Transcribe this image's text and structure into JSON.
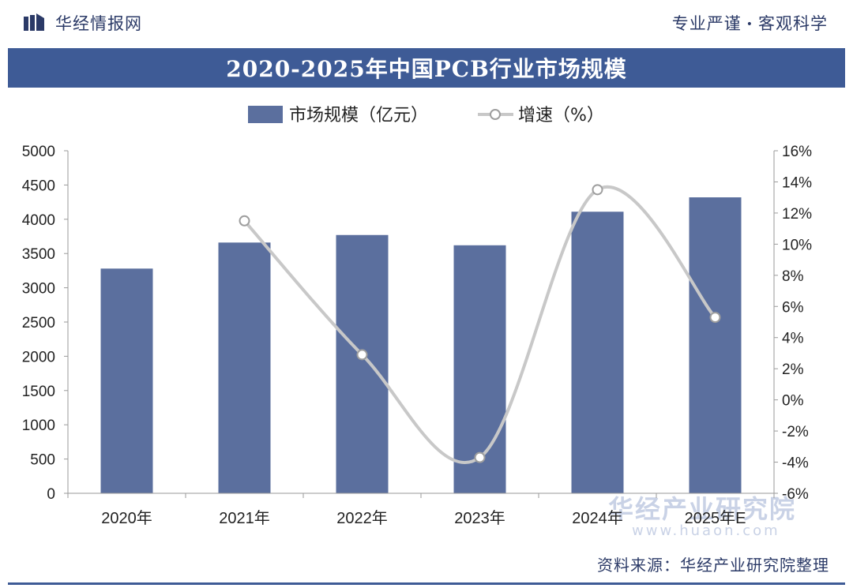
{
  "header": {
    "brand": "华经情报网",
    "slogan_left": "专业严谨",
    "slogan_dot": "•",
    "slogan_right": "客观科学"
  },
  "footer": {
    "source": "资料来源：华经产业研究院整理",
    "watermark_name": "华经产业研究院",
    "watermark_url": "www.huaon.com"
  },
  "colors": {
    "title_bg": "#3e5b96",
    "bar": "#5b6f9e",
    "line": "#c8c8c8",
    "marker_fill": "#ffffff",
    "marker_stroke": "#9e9e9e",
    "axis_text": "#222222"
  },
  "chart_data": {
    "type": "bar",
    "title": "2020-2025年中国PCB行业市场规模",
    "categories": [
      "2020年",
      "2021年",
      "2022年",
      "2023年",
      "2024年",
      "2025年E"
    ],
    "series": [
      {
        "name": "市场规模（亿元）",
        "type": "bar",
        "axis": "left",
        "values": [
          3280,
          3660,
          3770,
          3620,
          4110,
          4320
        ]
      },
      {
        "name": "增速（%）",
        "type": "line",
        "axis": "right",
        "values": [
          null,
          11.5,
          2.9,
          -3.7,
          13.5,
          5.3
        ]
      }
    ],
    "y_left": {
      "min": 0,
      "max": 5000,
      "ticks": [
        "0",
        "500",
        "1000",
        "1500",
        "2000",
        "2500",
        "3000",
        "3500",
        "4000",
        "4500",
        "5000"
      ]
    },
    "y_right": {
      "min": -6,
      "max": 16,
      "ticks": [
        "-6%",
        "-4%",
        "-2%",
        "0%",
        "2%",
        "4%",
        "6%",
        "8%",
        "10%",
        "12%",
        "14%",
        "16%"
      ]
    },
    "legend_position": "top-center",
    "grid": false
  }
}
